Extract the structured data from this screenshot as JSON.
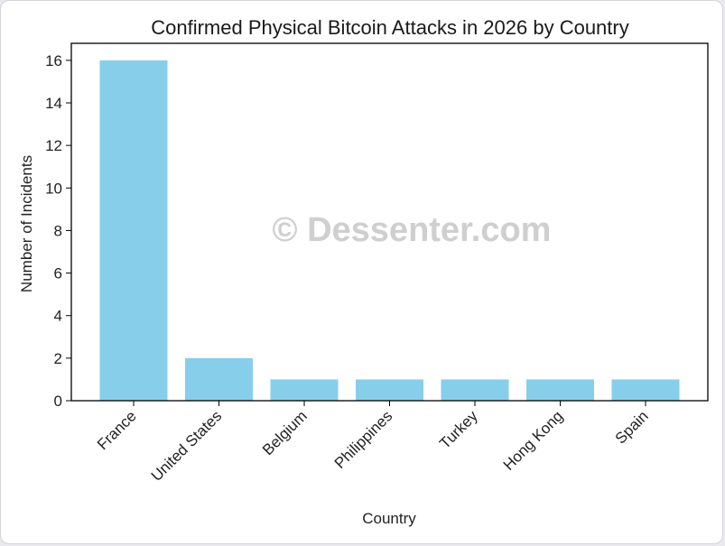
{
  "chart_data": {
    "type": "bar",
    "title": "Confirmed Physical Bitcoin Attacks in 2026 by Country",
    "xlabel": "Country",
    "ylabel": "Number of Incidents",
    "categories": [
      "France",
      "United States",
      "Belgium",
      "Philippines",
      "Turkey",
      "Hong Kong",
      "Spain"
    ],
    "values": [
      16,
      2,
      1,
      1,
      1,
      1,
      1
    ],
    "ylim": [
      0,
      16.8
    ],
    "yticks": [
      0,
      2,
      4,
      6,
      8,
      10,
      12,
      14,
      16
    ],
    "bar_color": "#87ceeb",
    "grid": false,
    "legend": "none"
  },
  "watermark": "© Dessenter.com"
}
